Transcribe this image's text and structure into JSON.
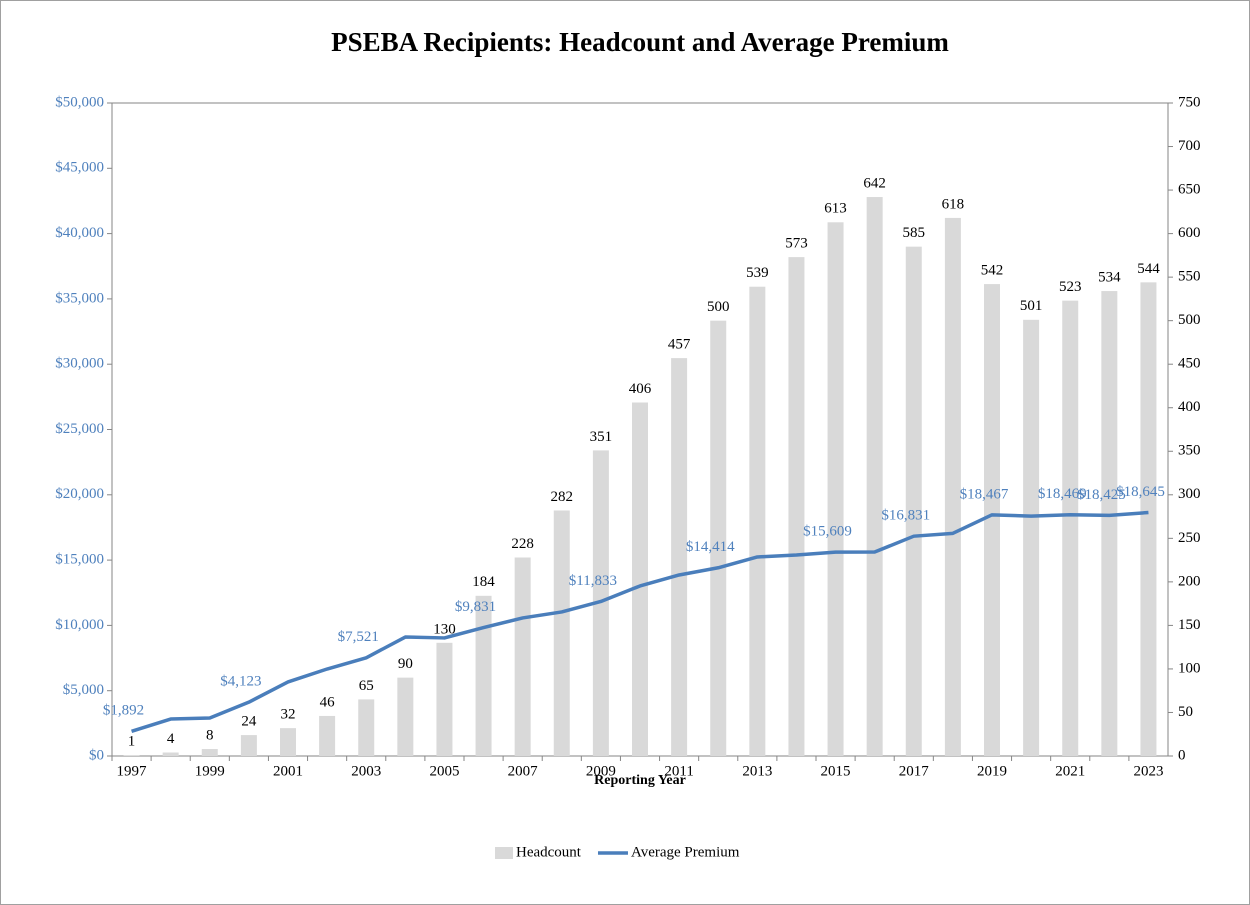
{
  "chart_data": {
    "type": "bar-line",
    "title": "PSEBA Recipients: Headcount and Average Premium",
    "x_label": "Reporting Year",
    "categories": [
      "1997",
      null,
      "1999",
      null,
      "2001",
      null,
      "2003",
      null,
      "2005",
      null,
      "2007",
      null,
      "2009",
      null,
      "2011",
      null,
      "2013",
      null,
      "2015",
      null,
      "2017",
      null,
      "2019",
      null,
      "2021",
      null,
      "2023"
    ],
    "series": [
      {
        "name": "Headcount",
        "type": "bar",
        "axis": "y2",
        "color": "#d9d9d9",
        "values": [
          1,
          4,
          8,
          24,
          32,
          46,
          65,
          90,
          130,
          184,
          228,
          282,
          351,
          406,
          457,
          500,
          539,
          573,
          613,
          642,
          585,
          618,
          542,
          501,
          523,
          534,
          544
        ]
      },
      {
        "name": "Average Premium",
        "type": "line",
        "axis": "y",
        "color": "#4a7ebb",
        "values": [
          1892,
          2830,
          2910,
          4123,
          5670,
          6660,
          7521,
          9110,
          9040,
          9831,
          10570,
          11030,
          11833,
          13020,
          13860,
          14414,
          15240,
          15390,
          15609,
          15620,
          16831,
          17050,
          18467,
          18370,
          18469,
          18425,
          18645
        ],
        "value_labels": [
          "$1,892",
          null,
          null,
          "$4,123",
          null,
          null,
          "$7,521",
          null,
          null,
          "$9,831",
          null,
          null,
          "$11,833",
          null,
          null,
          "$14,414",
          null,
          null,
          "$15,609",
          null,
          "$16,831",
          null,
          "$18,467",
          null,
          "$18,469",
          "$18,425",
          "$18,645"
        ]
      }
    ],
    "ylim": [
      0,
      50000
    ],
    "yticks": [
      {
        "value": 0,
        "label": "$0"
      },
      {
        "value": 5000,
        "label": "$5,000"
      },
      {
        "value": 10000,
        "label": "$10,000"
      },
      {
        "value": 15000,
        "label": "$15,000"
      },
      {
        "value": 20000,
        "label": "$20,000"
      },
      {
        "value": 25000,
        "label": "$25,000"
      },
      {
        "value": 30000,
        "label": "$30,000"
      },
      {
        "value": 35000,
        "label": "$35,000"
      },
      {
        "value": 40000,
        "label": "$40,000"
      },
      {
        "value": 45000,
        "label": "$45,000"
      },
      {
        "value": 50000,
        "label": "$50,000"
      }
    ],
    "y2lim": [
      0,
      750
    ],
    "y2ticks": [
      0,
      50,
      100,
      150,
      200,
      250,
      300,
      350,
      400,
      450,
      500,
      550,
      600,
      650,
      700,
      750
    ],
    "legend": "bottom"
  }
}
